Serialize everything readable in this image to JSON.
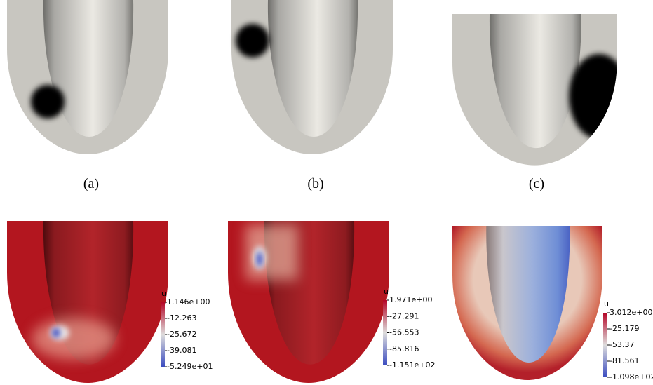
{
  "panels": [
    {
      "label": "(a)"
    },
    {
      "label": "(b)"
    },
    {
      "label": "(c)"
    }
  ],
  "colorbars": [
    {
      "title": "u",
      "ticks": [
        "1.146e+00",
        "-12.263",
        "-25.672",
        "-39.081",
        "-5.249e+01"
      ]
    },
    {
      "title": "u",
      "ticks": [
        "1.971e+00",
        "-27.291",
        "-56.553",
        "-85.816",
        "-1.151e+02"
      ]
    },
    {
      "title": "u",
      "ticks": [
        "3.012e+00",
        "-25.179",
        "-53.37",
        "-81.561",
        "-1.098e+02"
      ]
    }
  ]
}
